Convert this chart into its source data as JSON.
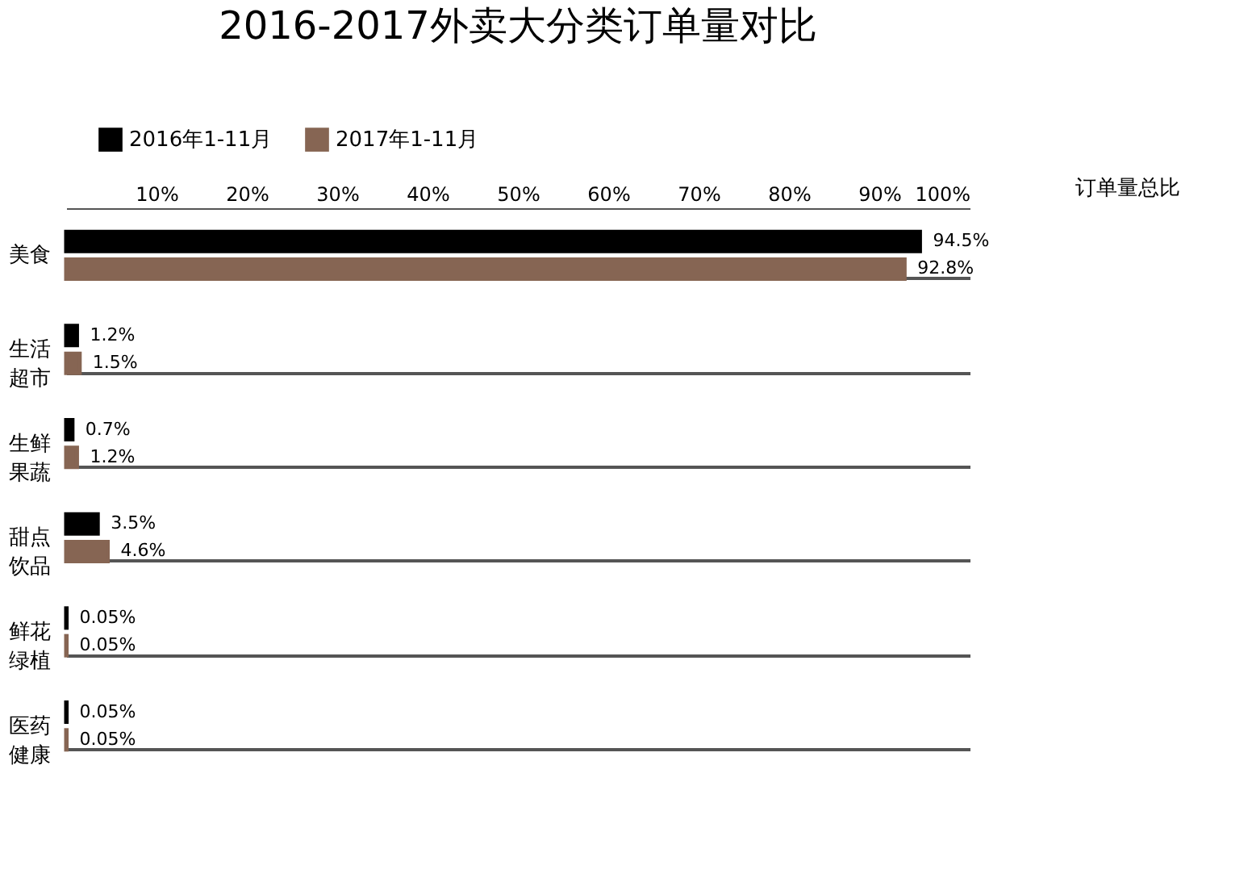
{
  "chart_data": {
    "type": "bar",
    "orientation": "horizontal",
    "title": "2016-2017外卖大分类订单量对比",
    "xlabel": "订单量总比",
    "categories": [
      "美食",
      "生活超市",
      "生鲜果蔬",
      "甜点饮品",
      "鲜花绿植",
      "医药健康"
    ],
    "series": [
      {
        "name": "2016年1-11月",
        "color": "#000000",
        "values": [
          94.5,
          1.2,
          0.7,
          3.5,
          0.05,
          0.05
        ],
        "value_labels": [
          "94.5%",
          "1.2%",
          "0.7%",
          "3.5%",
          "0.05%",
          "0.05%"
        ]
      },
      {
        "name": "2017年1-11月",
        "color": "#866553",
        "values": [
          92.8,
          1.5,
          1.2,
          4.6,
          0.05,
          0.05
        ],
        "value_labels": [
          "92.8%",
          "1.5%",
          "1.2%",
          "4.6%",
          "0.05%",
          "0.05%"
        ]
      }
    ],
    "xlim": [
      0,
      100
    ],
    "xticks": [
      {
        "value": 10,
        "label": "10%"
      },
      {
        "value": 20,
        "label": "20%"
      },
      {
        "value": 30,
        "label": "30%"
      },
      {
        "value": 40,
        "label": "40%"
      },
      {
        "value": 50,
        "label": "50%"
      },
      {
        "value": 60,
        "label": "60%"
      },
      {
        "value": 70,
        "label": "70%"
      },
      {
        "value": 80,
        "label": "80%"
      },
      {
        "value": 90,
        "label": "90%"
      },
      {
        "value": 100,
        "label": "100%"
      }
    ],
    "grid": "y",
    "legend": "top left"
  }
}
